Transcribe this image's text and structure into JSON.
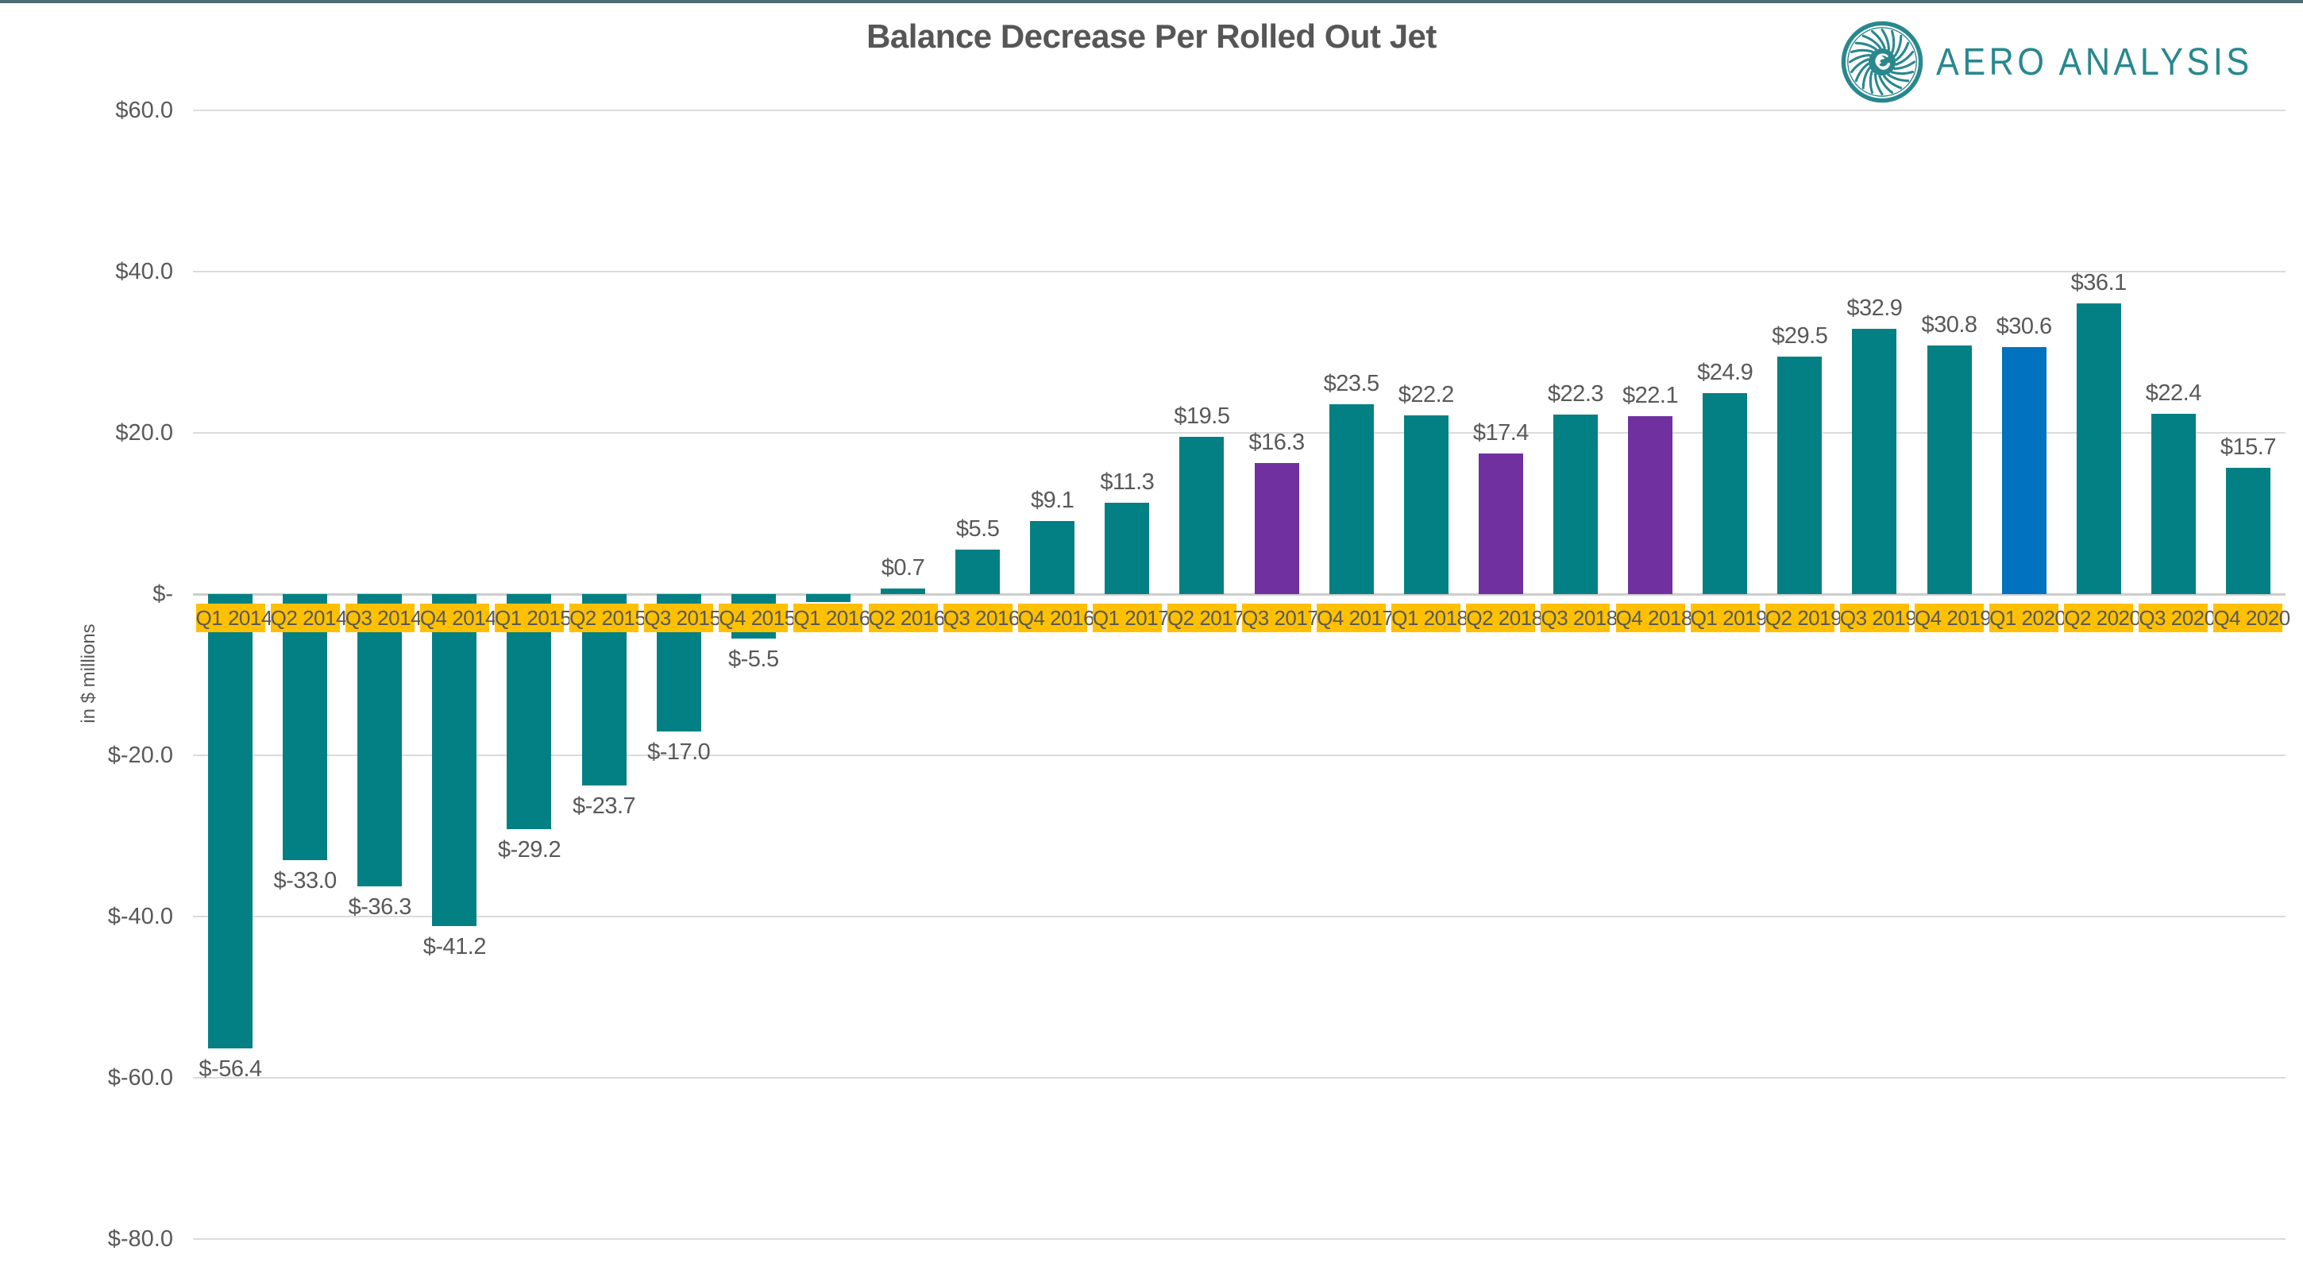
{
  "page": {
    "top_border_color": "#4A6B70",
    "background": "#FFFFFF"
  },
  "header": {
    "title": "Balance Decrease Per Rolled Out Jet"
  },
  "brand": {
    "name": "AERO ANALYSIS",
    "color": "#28888E",
    "logo_icon": "turbine-fan-icon"
  },
  "chart_data": {
    "type": "bar",
    "title": "Balance Decrease Per Rolled Out Jet",
    "xlabel": "",
    "ylabel": "in $ millions",
    "ylim": [
      -80,
      60
    ],
    "grid": true,
    "legend": false,
    "yticks": [
      {
        "value": 60,
        "label": "$60.0"
      },
      {
        "value": 40,
        "label": "$40.0"
      },
      {
        "value": 20,
        "label": "$20.0"
      },
      {
        "value": 0,
        "label": "$-"
      },
      {
        "value": -20,
        "label": "$-20.0"
      },
      {
        "value": -40,
        "label": "$-40.0"
      },
      {
        "value": -60,
        "label": "$-60.0"
      },
      {
        "value": -80,
        "label": "$-80.0"
      }
    ],
    "categories": [
      "Q1 2014",
      "Q2 2014",
      "Q3 2014",
      "Q4 2014",
      "Q1 2015",
      "Q2 2015",
      "Q3 2015",
      "Q4 2015",
      "Q1 2016",
      "Q2 2016",
      "Q3 2016",
      "Q4 2016",
      "Q1 2017",
      "Q2 2017",
      "Q3 2017",
      "Q4 2017",
      "Q1 2018",
      "Q2 2018",
      "Q3 2018",
      "Q4 2018",
      "Q1 2019",
      "Q2 2019",
      "Q3 2019",
      "Q4 2019",
      "Q1 2020",
      "Q2 2020",
      "Q3 2020",
      "Q4 2020"
    ],
    "series": [
      {
        "name": "Balance decrease per rolled out jet",
        "values": [
          -56.4,
          -33.0,
          -36.3,
          -41.2,
          -29.2,
          -23.7,
          -17.0,
          -5.5,
          -1.0,
          0.7,
          5.5,
          9.1,
          11.3,
          19.5,
          16.3,
          23.5,
          22.2,
          17.4,
          22.3,
          22.1,
          24.9,
          29.5,
          32.9,
          30.8,
          30.6,
          36.1,
          22.4,
          15.7
        ],
        "value_labels": [
          "$-56.4",
          "$-33.0",
          "$-36.3",
          "$-41.2",
          "$-29.2",
          "$-23.7",
          "$-17.0",
          "$-5.5",
          "",
          "$0.7",
          "$5.5",
          "$9.1",
          "$11.3",
          "$19.5",
          "$16.3",
          "$23.5",
          "$22.2",
          "$17.4",
          "$22.3",
          "$22.1",
          "$24.9",
          "$29.5",
          "$32.9",
          "$30.8",
          "$30.6",
          "$36.1",
          "$22.4",
          "$15.7"
        ],
        "bar_color_keys": [
          "teal",
          "teal",
          "teal",
          "teal",
          "teal",
          "teal",
          "teal",
          "teal",
          "teal",
          "teal",
          "teal",
          "teal",
          "teal",
          "teal",
          "purple",
          "teal",
          "teal",
          "purple",
          "teal",
          "purple",
          "teal",
          "teal",
          "teal",
          "teal",
          "blue",
          "teal",
          "teal",
          "teal"
        ]
      }
    ],
    "category_label_style": "gold-highlight-boxes",
    "colors": {
      "teal": "#038083",
      "purple": "#7030A0",
      "blue": "#0072C0",
      "gold": "#FFC000",
      "grid": "#DBDBDB",
      "zero_line": "#CDCDCD",
      "text": "#595959",
      "title": "#565656"
    }
  }
}
